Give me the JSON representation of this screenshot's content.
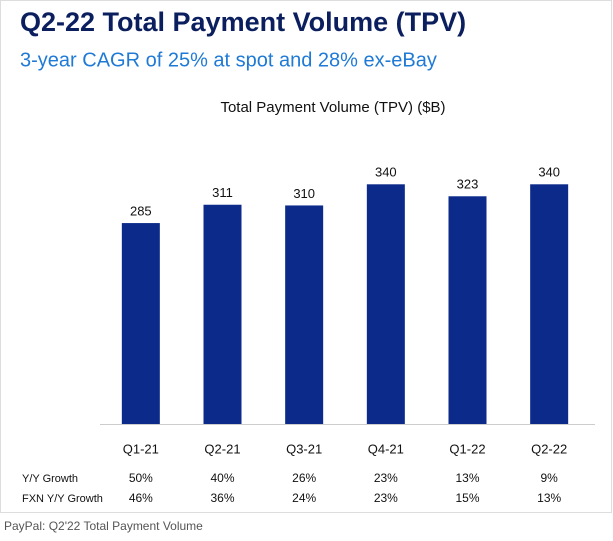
{
  "chart_data": {
    "type": "bar",
    "title": "Q2-22 Total Payment Volume (TPV)",
    "subtitle": "3-year CAGR of 25% at spot and 28% ex-eBay",
    "chart_title": "Total Payment Volume (TPV) ($B)",
    "categories": [
      "Q1-21",
      "Q2-21",
      "Q3-21",
      "Q4-21",
      "Q1-22",
      "Q2-22"
    ],
    "values": [
      285,
      311,
      310,
      340,
      323,
      340
    ],
    "color": "#0b2a8a",
    "rows": [
      {
        "label": "Y/Y Growth",
        "values": [
          50,
          40,
          26,
          23,
          13,
          9
        ],
        "value_labels": [
          "50%",
          "40%",
          "26%",
          "23%",
          "13%",
          "9%"
        ]
      },
      {
        "label": "FXN Y/Y Growth",
        "values": [
          46,
          36,
          24,
          23,
          15,
          13
        ],
        "value_labels": [
          "46%",
          "36%",
          "24%",
          "23%",
          "15%",
          "13%"
        ]
      }
    ],
    "caption": "PayPal: Q2'22 Total Payment Volume"
  }
}
